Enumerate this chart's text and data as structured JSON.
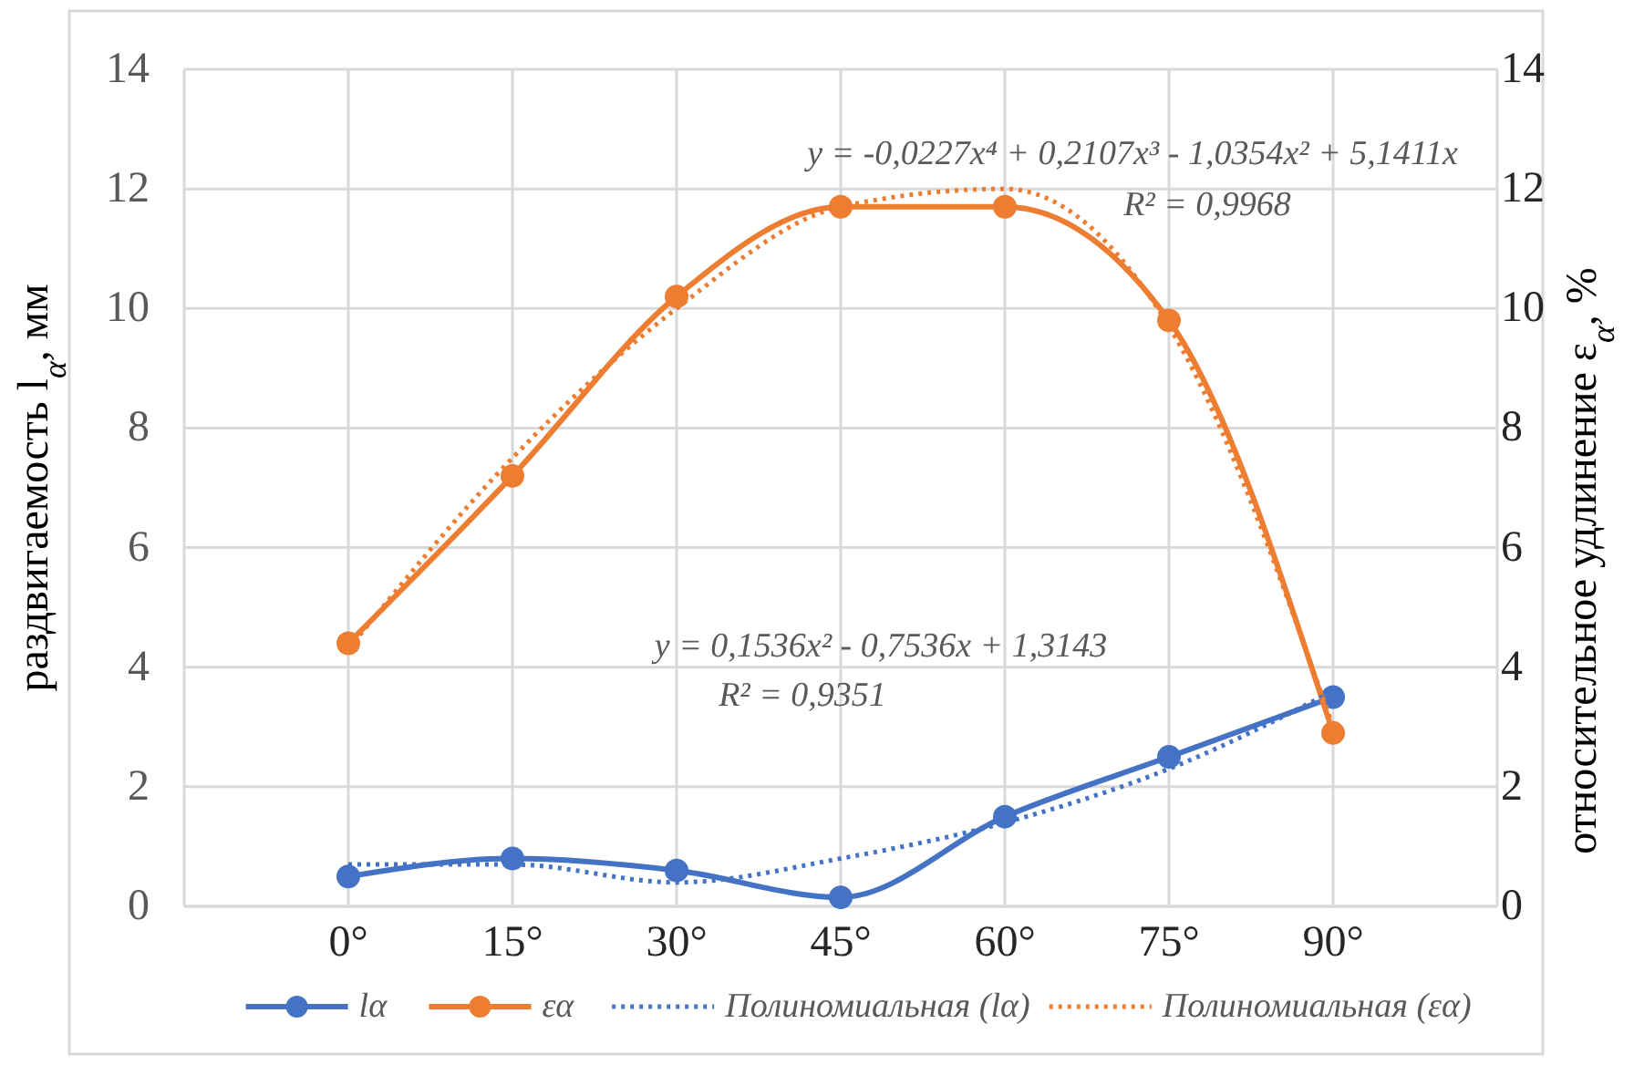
{
  "chart_data": {
    "type": "line",
    "categories": [
      null,
      "0°",
      "15°",
      "30°",
      "45°",
      "60°",
      "75°",
      "90°",
      null
    ],
    "series": [
      {
        "name": "lα",
        "color": "#4472c4",
        "values": [
          null,
          0.5,
          0.8,
          0.6,
          0.15,
          1.5,
          2.5,
          3.5,
          null
        ],
        "marker": "circle",
        "line_style": "solid"
      },
      {
        "name": "εα",
        "color": "#ed7d31",
        "axis": "y2",
        "values": [
          null,
          4.4,
          7.2,
          10.2,
          11.7,
          11.7,
          9.8,
          2.9,
          null
        ],
        "marker": "circle",
        "line_style": "solid"
      },
      {
        "name": "Полиномиальная (lα)",
        "color": "#4472c4",
        "values": [
          null,
          0.7,
          0.7,
          0.4,
          0.8,
          1.4,
          2.3,
          3.6,
          null
        ],
        "marker": "none",
        "line_style": "dotted"
      },
      {
        "name": "Полиномиальная (εα)",
        "color": "#ed7d31",
        "axis": "y2",
        "values": [
          null,
          4.3,
          7.5,
          10.0,
          11.7,
          12.0,
          9.7,
          3.0,
          null
        ],
        "marker": "none",
        "line_style": "dotted"
      }
    ],
    "ylabel": "раздвигаемость l$_{α}$, мм",
    "y2label": "относительное удлинение ε$_{α}$, %",
    "ylim": [
      0,
      14
    ],
    "yticks": [
      0,
      2,
      4,
      6,
      8,
      10,
      12,
      14
    ],
    "y2lim": [
      0,
      14
    ],
    "y2ticks": [
      0,
      2,
      4,
      6,
      8,
      10,
      12,
      14
    ],
    "annotations": [
      "y = -0,0227x⁴ + 0,2107x³ - 1,0354x² + 5,1411x",
      "R² = 0,9968",
      "y = 0,1536x² - 0,7536x + 1,3143",
      "R² = 0,9351"
    ],
    "grid": true,
    "legend": "bottom"
  }
}
